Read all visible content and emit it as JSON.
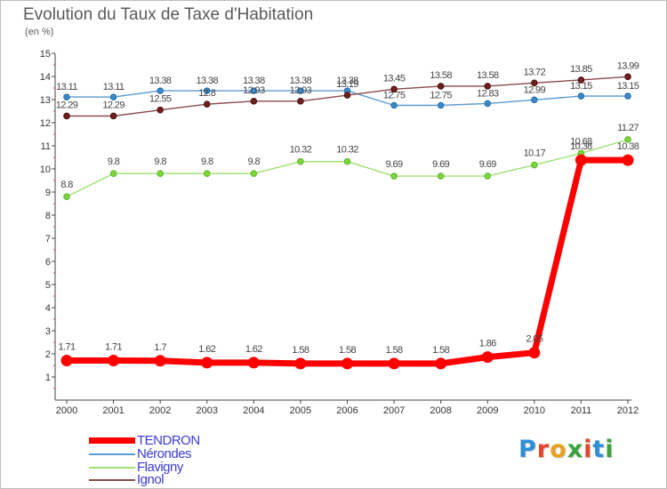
{
  "title": "Evolution du Taux de Taxe d'Habitation",
  "subtitle": "(en %)",
  "logo": {
    "text": "Proxiti",
    "letter_colors": [
      "#2e8fd6",
      "#e6452a",
      "#e8a21e",
      "#3aa33b",
      "#e6452a",
      "#2e8fd6",
      "#3aa33b"
    ]
  },
  "chart_data": {
    "type": "line",
    "x": [
      "2000",
      "2001",
      "2002",
      "2003",
      "2004",
      "2005",
      "2006",
      "2007",
      "2008",
      "2009",
      "2010",
      "2011",
      "2012"
    ],
    "ylim": [
      0,
      15
    ],
    "yticks": [
      "1",
      "2",
      "3",
      "4",
      "5",
      "6",
      "7",
      "8",
      "9",
      "10",
      "11",
      "12",
      "13",
      "14",
      "15"
    ],
    "grid": false,
    "legend_position": "bottom-left",
    "series": [
      {
        "name": "TENDRON",
        "color": "#ff0000",
        "values": [
          1.71,
          1.71,
          1.7,
          1.62,
          1.62,
          1.58,
          1.58,
          1.58,
          1.58,
          1.86,
          2.05,
          10.38,
          10.38
        ],
        "labels": [
          "1.71",
          "1.71",
          "1.7",
          "1.62",
          "1.62",
          "1.58",
          "1.58",
          "1.58",
          "1.58",
          "1.86",
          "2.05",
          "10.38",
          "10.38"
        ]
      },
      {
        "name": "Nérondes",
        "color": "#5b9bd0",
        "values": [
          13.11,
          13.11,
          13.38,
          13.38,
          13.38,
          13.38,
          13.38,
          12.75,
          12.75,
          12.83,
          12.99,
          13.15,
          13.15
        ],
        "labels": [
          "13.11",
          "13.11",
          "13.38",
          "13.38",
          "13.38",
          "13.38",
          "13.38",
          "12.75",
          "12.75",
          "12.83",
          "12.99",
          "13.15",
          "13.15"
        ]
      },
      {
        "name": "Flavigny",
        "color": "#9ee070",
        "values": [
          8.8,
          9.8,
          9.8,
          9.8,
          9.8,
          10.32,
          10.32,
          9.69,
          9.69,
          9.69,
          10.17,
          10.68,
          11.27
        ],
        "labels": [
          "8.8",
          "9.8",
          "9.8",
          "9.8",
          "9.8",
          "10.32",
          "10.32",
          "9.69",
          "9.69",
          "9.69",
          "10.17",
          "10.68",
          "11.27"
        ]
      },
      {
        "name": "Ignol",
        "color": "#8b4a4a",
        "values": [
          12.29,
          12.29,
          12.55,
          12.8,
          12.93,
          12.93,
          13.19,
          13.45,
          13.58,
          13.58,
          13.72,
          13.85,
          13.99
        ],
        "labels": [
          "12.29",
          "12.29",
          "12.55",
          "12.8",
          "12.93",
          "12.93",
          "13.19",
          "13.45",
          "13.58",
          "13.58",
          "13.72",
          "13.85",
          "13.99"
        ]
      }
    ]
  }
}
